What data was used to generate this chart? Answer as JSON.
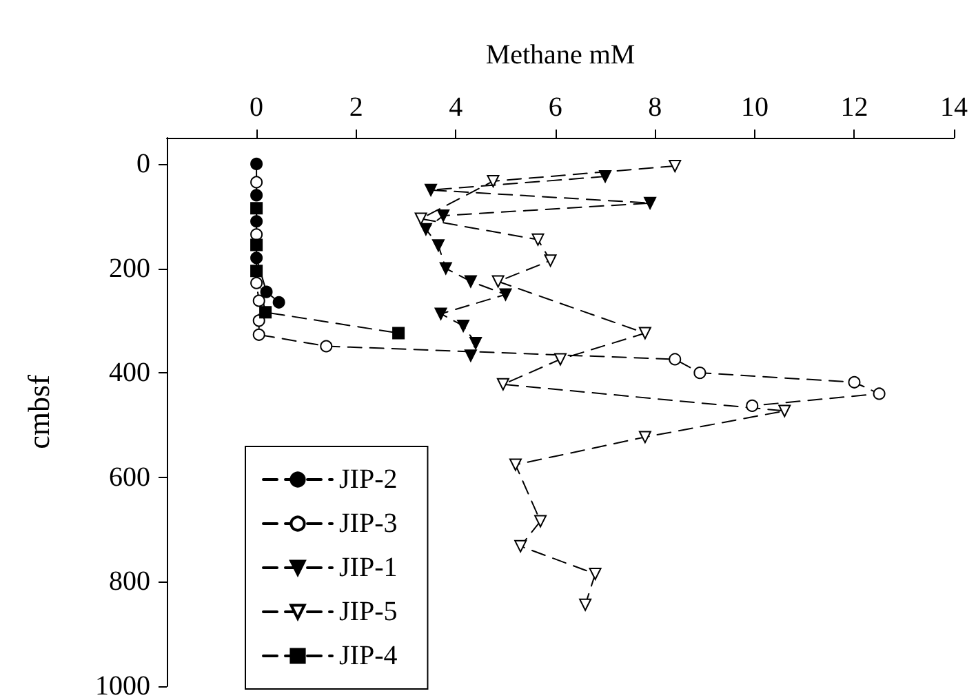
{
  "chart_data": {
    "type": "line",
    "xlabel": "Methane mM",
    "ylabel": "cmbsf",
    "xlim": [
      -1.8,
      14
    ],
    "xticks": [
      0,
      2,
      4,
      6,
      8,
      10,
      12,
      14
    ],
    "ylim": [
      1000,
      -50
    ],
    "yticks": [
      0,
      200,
      400,
      600,
      800,
      1000
    ],
    "grid": false,
    "legend": "bottom left",
    "line_style": "dashed",
    "series": [
      {
        "name": "JIP-2",
        "color": "#000000",
        "marker": "circle",
        "x": [
          0,
          0,
          0,
          0,
          0.2,
          0.45
        ],
        "values": [
          0,
          60,
          110,
          180,
          245,
          265
        ]
      },
      {
        "name": "JIP-3",
        "color": "#ffffff",
        "marker": "circle",
        "x": [
          0,
          0,
          0,
          0.05,
          0.05,
          0.05,
          1.4,
          8.4,
          8.9,
          12,
          12.5,
          9.95
        ],
        "values": [
          35,
          135,
          228,
          262,
          300,
          327,
          349,
          374,
          400,
          418,
          440,
          463
        ]
      },
      {
        "name": "JIP-1",
        "color": "#000000",
        "marker": "triangle",
        "x": [
          7,
          3.5,
          7.9,
          3.75,
          3.4,
          3.65,
          3.8,
          4.3,
          5,
          3.7,
          4.15,
          4.4,
          4.3
        ],
        "values": [
          24,
          50,
          75,
          99,
          125,
          156,
          200,
          225,
          250,
          287,
          310,
          343,
          367
        ]
      },
      {
        "name": "JIP-5",
        "color": "#ffffff",
        "marker": "triangle",
        "x": [
          8.4,
          4.75,
          3.3,
          5.65,
          5.9,
          4.85,
          7.8,
          6.1,
          4.95,
          10.6,
          7.8,
          5.2,
          5.7,
          5.3,
          6.8,
          6.6
        ],
        "values": [
          4,
          33,
          105,
          145,
          185,
          225,
          324,
          374,
          422,
          473,
          523,
          576,
          684,
          732,
          785,
          844
        ]
      },
      {
        "name": "JIP-4",
        "color": "#000000",
        "marker": "square",
        "x": [
          0,
          0,
          0,
          0.18,
          2.85
        ],
        "values": [
          85,
          155,
          205,
          284,
          324
        ]
      }
    ]
  }
}
